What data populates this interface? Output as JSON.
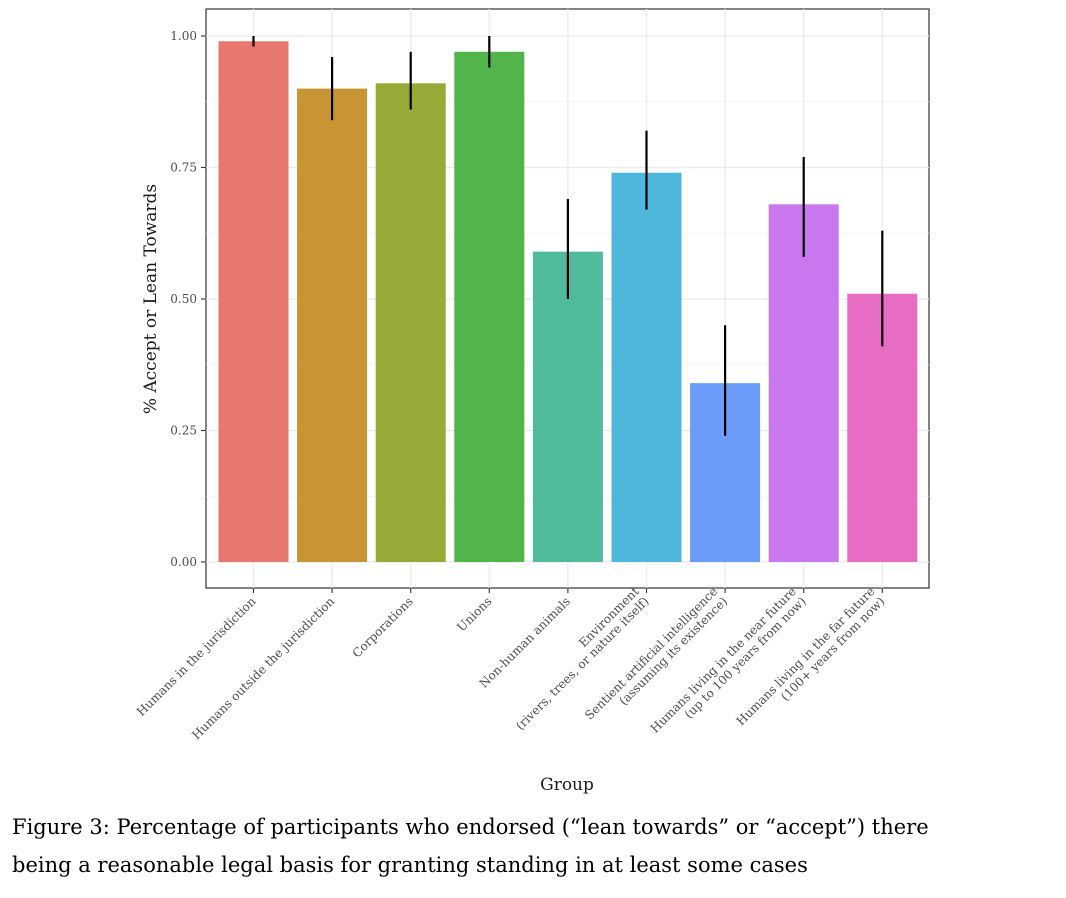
{
  "chart_data": {
    "type": "bar",
    "xlabel": "Group",
    "ylabel": "% Accept or Lean Towards",
    "ylim": [
      0,
      1.0
    ],
    "yticks": [
      "0.00",
      "0.25",
      "0.50",
      "0.75",
      "1.00"
    ],
    "grid": true,
    "legend": "none",
    "categories": [
      [
        "Humans in the jurisdiction"
      ],
      [
        "Humans outside the jurisdiction"
      ],
      [
        "Corporations"
      ],
      [
        "Unions"
      ],
      [
        "Non-human animals"
      ],
      [
        "Environment",
        "(rivers, trees, or nature itself)"
      ],
      [
        "Sentient artificial intelligence",
        "(assuming its existence)"
      ],
      [
        "Humans living in the near future",
        "(up to 100 years from now)"
      ],
      [
        "Humans living in the far future",
        "(100+ years from now)"
      ]
    ],
    "values": [
      0.99,
      0.9,
      0.91,
      0.97,
      0.59,
      0.74,
      0.34,
      0.68,
      0.51
    ],
    "error_low": [
      0.98,
      0.84,
      0.86,
      0.94,
      0.5,
      0.67,
      0.24,
      0.58,
      0.41
    ],
    "error_high": [
      1.0,
      0.96,
      0.97,
      1.0,
      0.69,
      0.82,
      0.45,
      0.77,
      0.63
    ],
    "colors": [
      "#E8786E",
      "#C99433",
      "#97A937",
      "#52B54C",
      "#51BA9D",
      "#50B7DC",
      "#6B9CF9",
      "#C877EE",
      "#E86CC3"
    ]
  },
  "caption": {
    "line1": "Figure 3: Percentage of participants who endorsed (“lean towards” or “accept”) there",
    "line2": "being a reasonable legal basis for granting standing in at least some cases"
  }
}
